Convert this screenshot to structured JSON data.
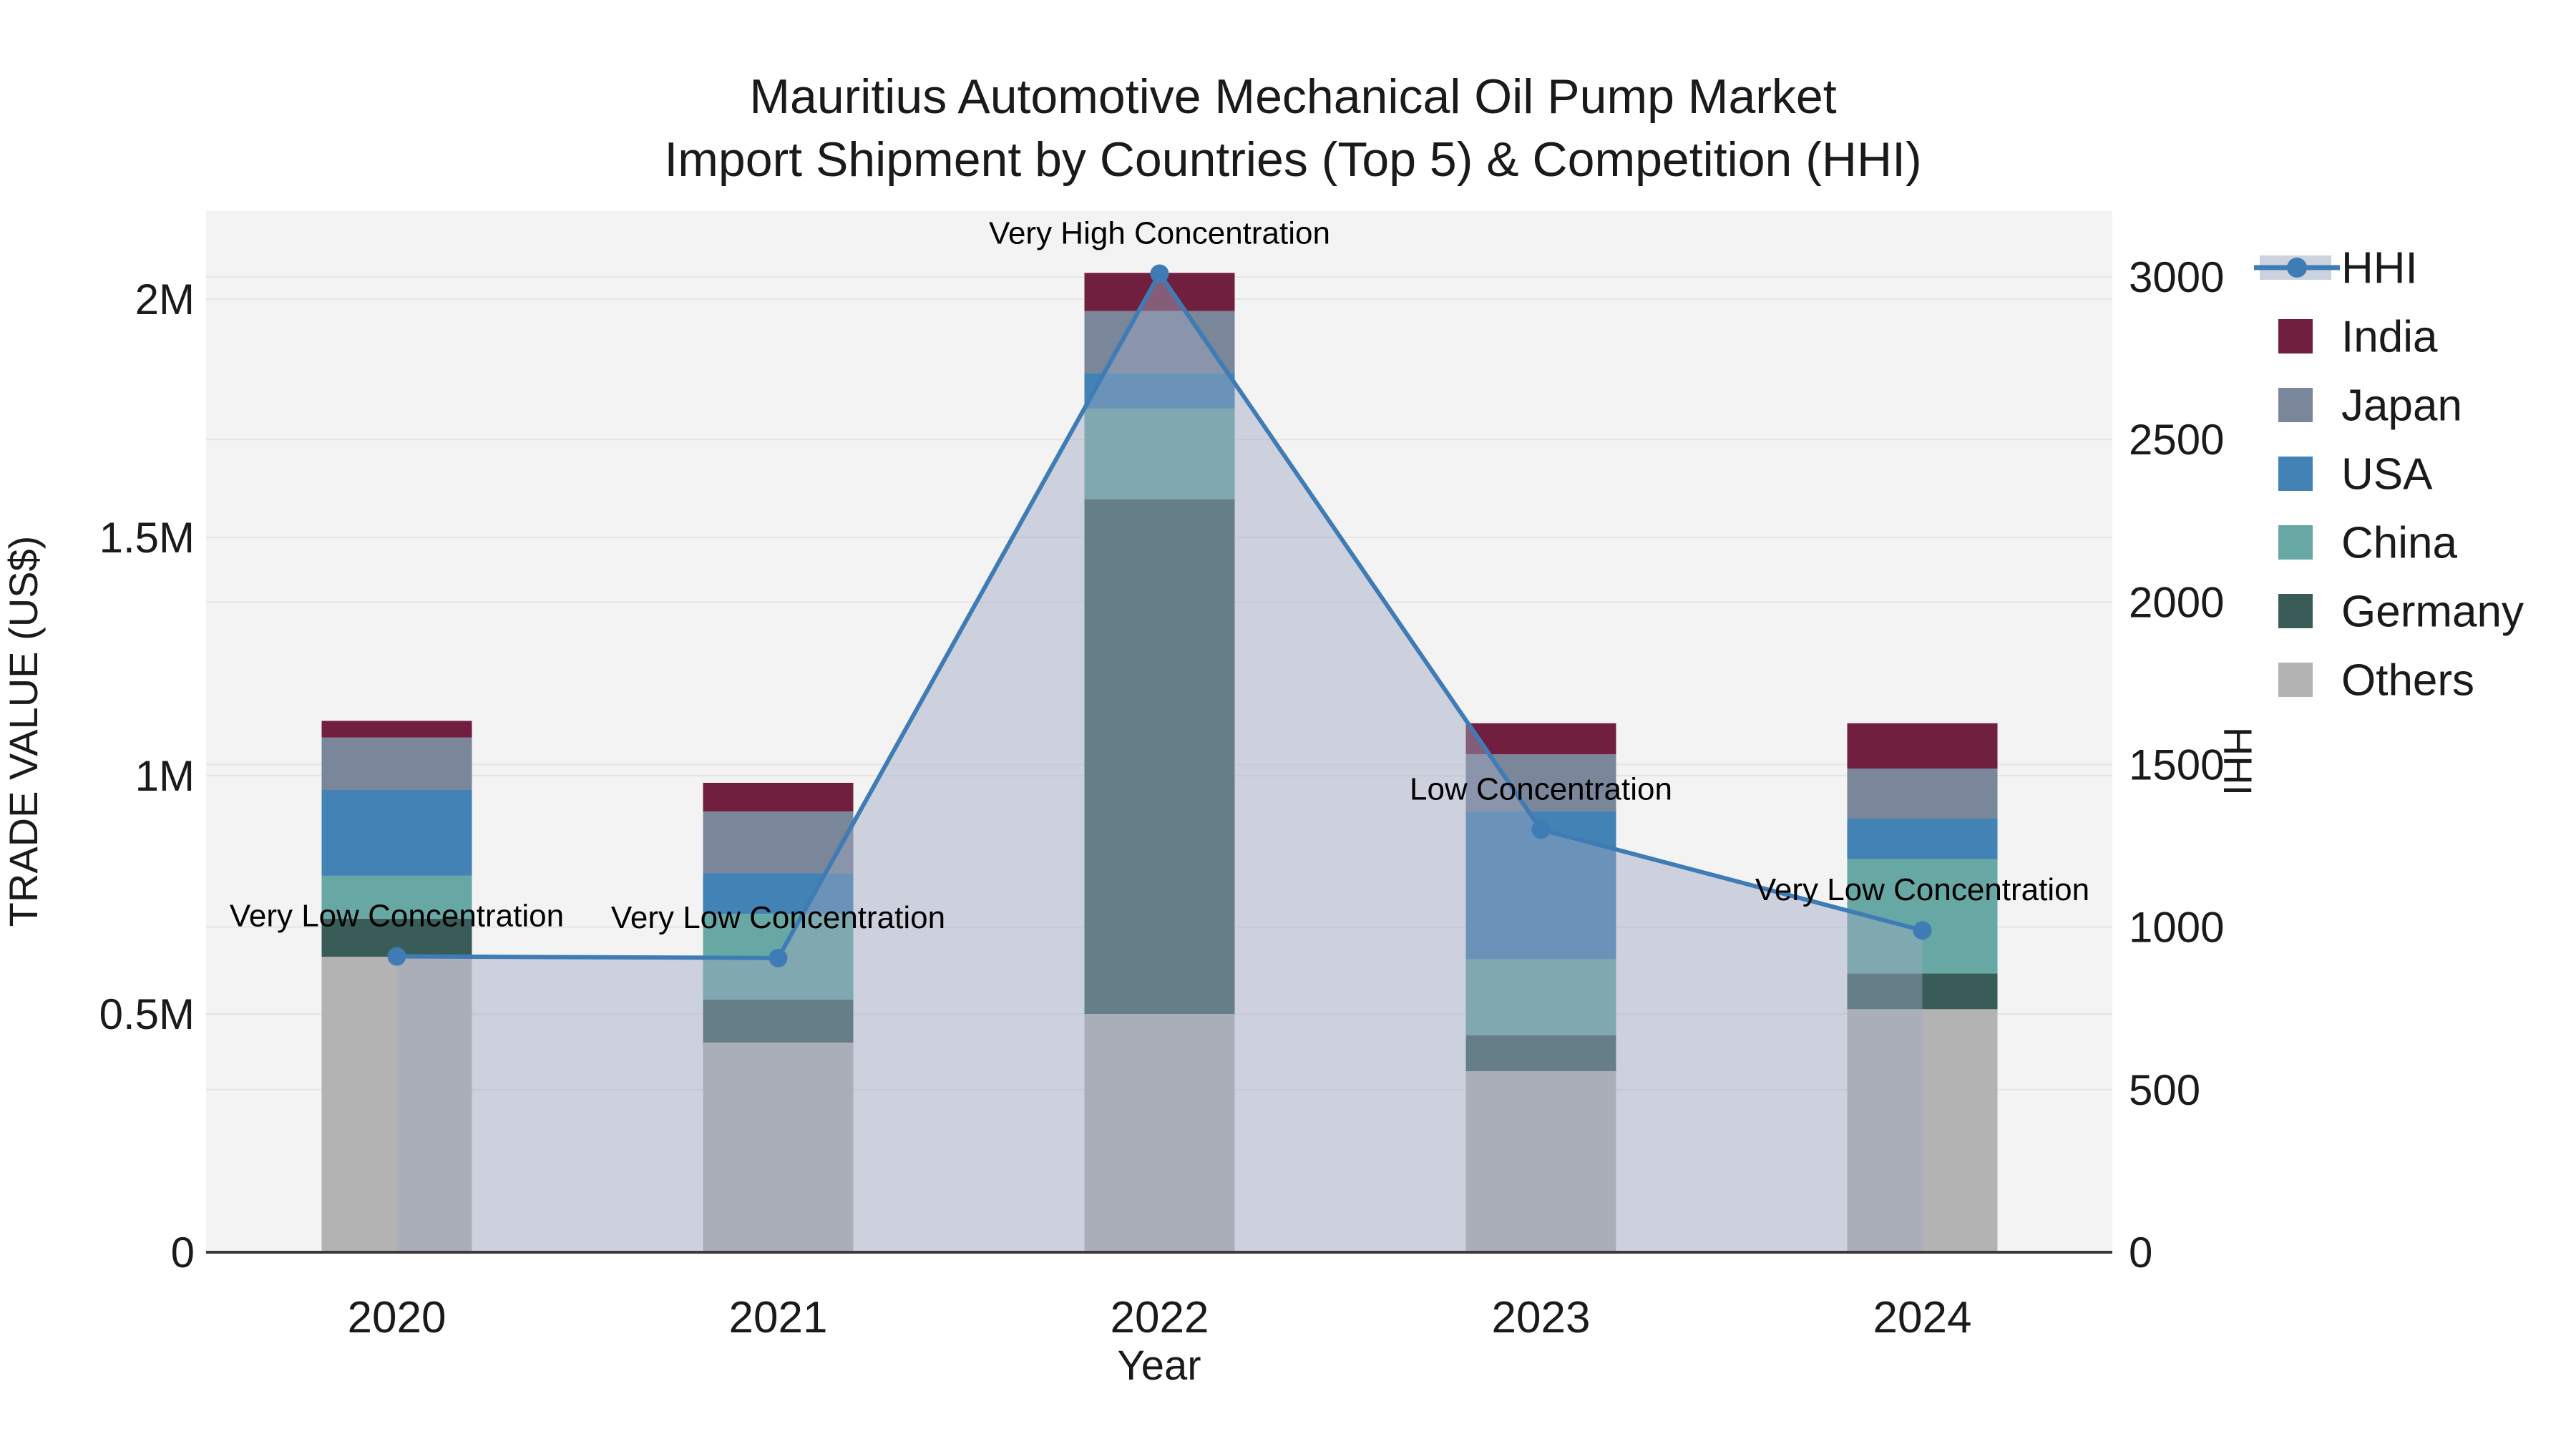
{
  "chart_data": {
    "type": "bar-line-combo",
    "title_line1": "Mauritius Automotive Mechanical Oil Pump Market",
    "title_line2": "Import Shipment by Countries (Top 5) & Competition (HHI)",
    "xlabel": "Year",
    "ylabel_left": "TRADE VALUE (US$)",
    "ylabel_right": "HHI",
    "categories": [
      "2020",
      "2021",
      "2022",
      "2023",
      "2024"
    ],
    "bar_series": [
      {
        "name": "India",
        "color": "#701f3e",
        "values": [
          35000,
          60000,
          80000,
          65000,
          95000
        ]
      },
      {
        "name": "Japan",
        "color": "#7a8699",
        "values": [
          110000,
          130000,
          130000,
          120000,
          105000
        ]
      },
      {
        "name": "USA",
        "color": "#4282b4",
        "values": [
          180000,
          85000,
          75000,
          310000,
          85000
        ]
      },
      {
        "name": "China",
        "color": "#68a8a4",
        "values": [
          90000,
          180000,
          190000,
          160000,
          240000
        ]
      },
      {
        "name": "Germany",
        "color": "#3a5c58",
        "values": [
          80000,
          90000,
          1080000,
          75000,
          75000
        ]
      },
      {
        "name": "Others",
        "color": "#b3b3b3",
        "values": [
          620000,
          440000,
          500000,
          380000,
          510000
        ]
      }
    ],
    "stack_order_bottom_to_top": [
      "Others",
      "Germany",
      "China",
      "USA",
      "Japan",
      "India"
    ],
    "bar_totals": [
      1115000,
      985000,
      2055000,
      1110000,
      1110000
    ],
    "line_series": {
      "name": "HHI",
      "color": "#3f7cb6",
      "area_fill_color": "rgba(158,169,192,0.45)",
      "legend_band_color": "#ccd3de",
      "values": [
        910,
        905,
        3010,
        1300,
        990
      ]
    },
    "annotations": [
      {
        "category": "2020",
        "text": "Very Low Concentration"
      },
      {
        "category": "2021",
        "text": "Very Low Concentration"
      },
      {
        "category": "2022",
        "text": "Very High Concentration"
      },
      {
        "category": "2023",
        "text": "Low Concentration"
      },
      {
        "category": "2024",
        "text": "Very Low Concentration"
      }
    ],
    "y_left": {
      "tick_labels": [
        "0",
        "0.5M",
        "1M",
        "1.5M",
        "2M"
      ],
      "tick_values": [
        0,
        500000,
        1000000,
        1500000,
        2000000
      ],
      "range": [
        0,
        2185000
      ]
    },
    "y_right": {
      "tick_labels": [
        "0",
        "500",
        "1000",
        "1500",
        "2000",
        "2500",
        "3000"
      ],
      "tick_values": [
        0,
        500,
        1000,
        1500,
        2000,
        2500,
        3000
      ],
      "range": [
        0,
        3200
      ]
    },
    "legend": {
      "position": "right",
      "entries": [
        "HHI",
        "India",
        "Japan",
        "USA",
        "China",
        "Germany",
        "Others"
      ]
    },
    "style": {
      "plot_background": "#f4f3f4",
      "page_background": "#ffffff",
      "gridline_color": "#e4e4e6",
      "axis_line_color": "#3a3a3a",
      "text_color": "#1a1a1a",
      "grid": true
    }
  }
}
